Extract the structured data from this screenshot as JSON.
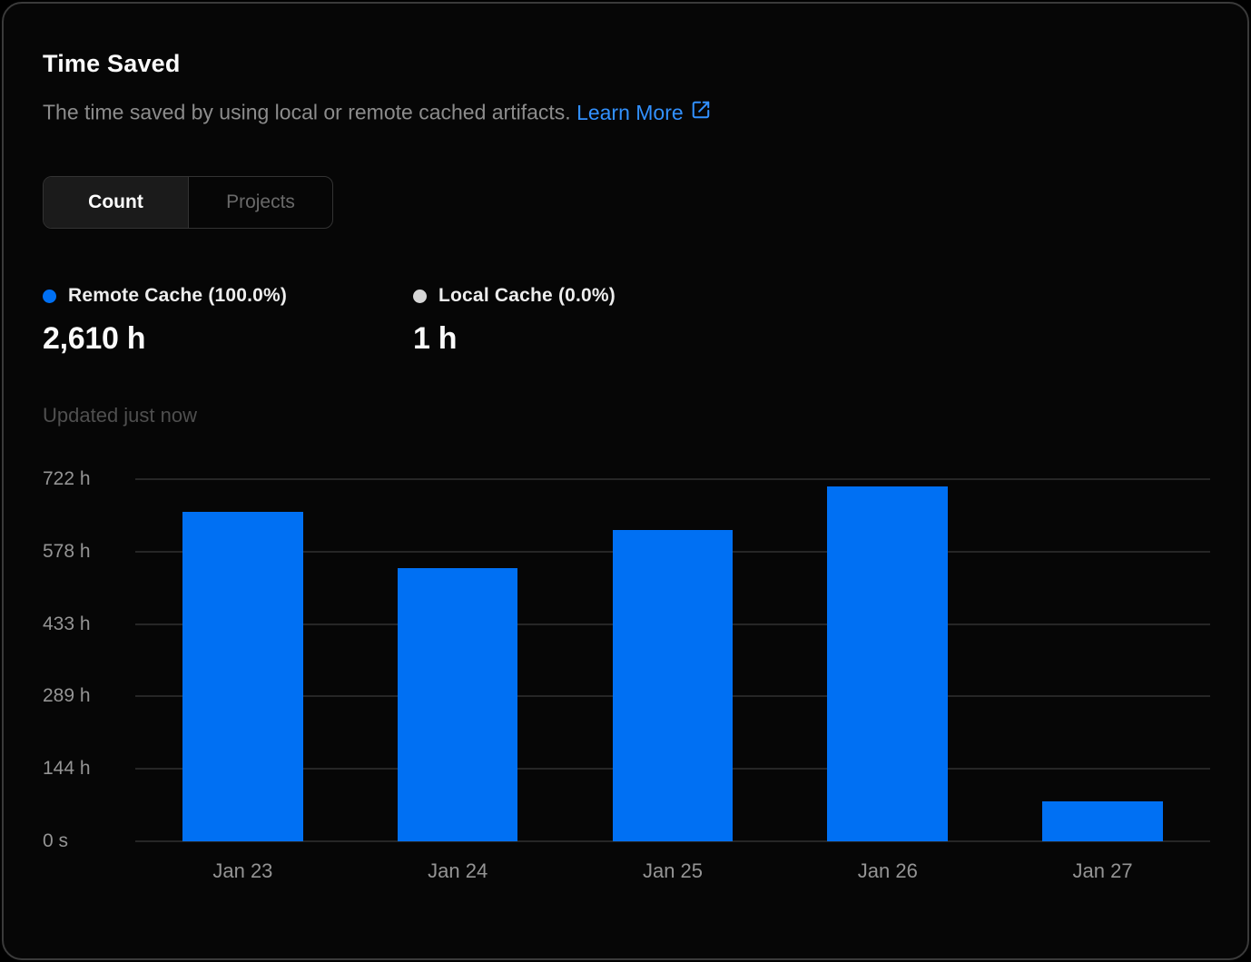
{
  "card": {
    "title": "Time Saved",
    "subtitle": "The time saved by using local or remote cached artifacts.",
    "learn_more_label": "Learn More",
    "tabs": [
      {
        "label": "Count",
        "active": true
      },
      {
        "label": "Projects",
        "active": false
      }
    ],
    "stats": [
      {
        "label": "Remote Cache (100.0%)",
        "value": "2,610 h",
        "dot_color": "#0070f3"
      },
      {
        "label": "Local Cache (0.0%)",
        "value": "1 h",
        "dot_color": "#d6d6d6"
      }
    ],
    "updated": "Updated just now"
  },
  "colors": {
    "card_background": "#060606",
    "card_border": "#3a3a3a",
    "accent_blue": "#0070f3",
    "link_blue": "#3291ff",
    "gridline": "#262626",
    "axis_label": "#949494"
  },
  "chart_data": {
    "type": "bar",
    "title": "Time Saved",
    "categories": [
      "Jan 23",
      "Jan 24",
      "Jan 25",
      "Jan 26",
      "Jan 27"
    ],
    "series": [
      {
        "name": "Remote Cache",
        "values": [
          657,
          545,
          621,
          708,
          79
        ]
      }
    ],
    "unit": "h",
    "ymax": 722,
    "ylim": [
      0,
      722
    ],
    "ytick_labels": [
      "722 h",
      "578 h",
      "433 h",
      "289 h",
      "144 h",
      "0 s"
    ],
    "ytick_values": [
      722,
      578,
      433,
      289,
      144,
      0
    ],
    "grid": "horizontal",
    "legend_position": "top",
    "bar_color": "#0070f3"
  }
}
